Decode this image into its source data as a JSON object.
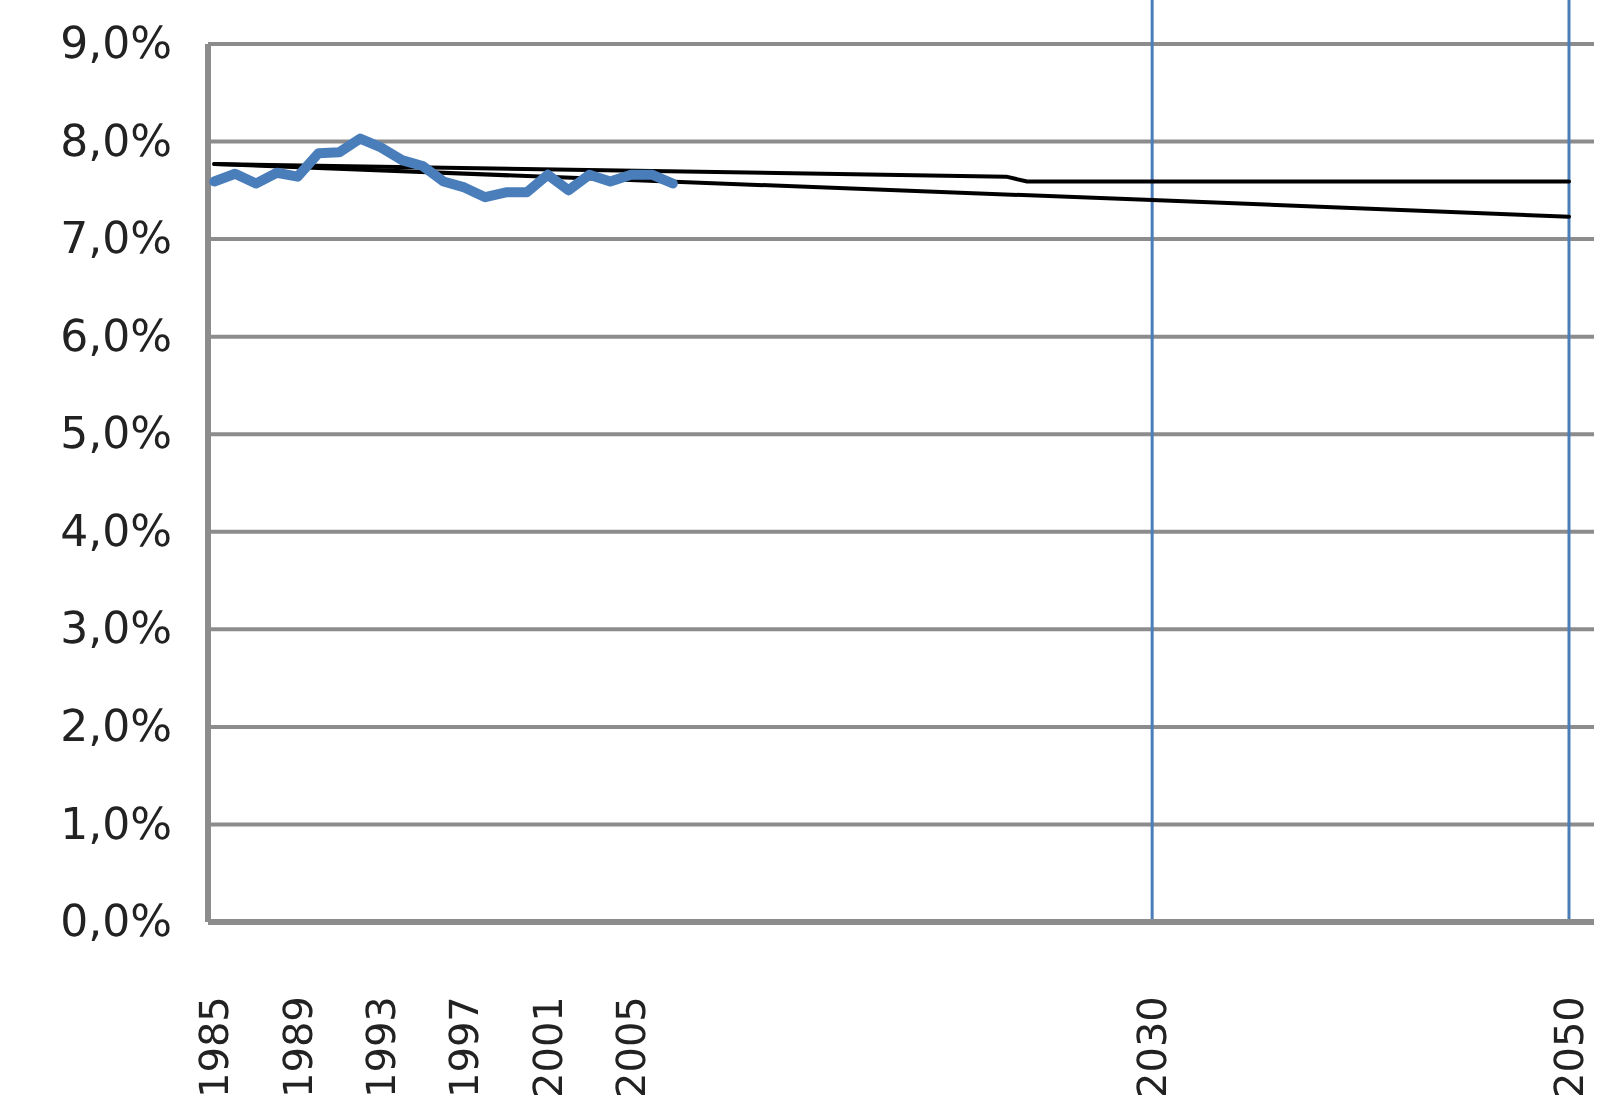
{
  "chart_data": {
    "type": "line",
    "xlim": [
      1984.7,
      2051.2
    ],
    "xticks": [
      1985,
      1989,
      1993,
      1997,
      2001,
      2005,
      2030,
      2050
    ],
    "ylim": [
      0,
      9
    ],
    "yticks": [
      {
        "value": 0,
        "label": "0,0%"
      },
      {
        "value": 1,
        "label": "1,0%"
      },
      {
        "value": 2,
        "label": "2,0%"
      },
      {
        "value": 3,
        "label": "3,0%"
      },
      {
        "value": 4,
        "label": "4,0%"
      },
      {
        "value": 5,
        "label": "5,0%"
      },
      {
        "value": 6,
        "label": "6,0%"
      },
      {
        "value": 7,
        "label": "7,0%"
      },
      {
        "value": 8,
        "label": "8,0%"
      },
      {
        "value": 9,
        "label": "9,0%"
      }
    ],
    "grid": "y",
    "marker": "none",
    "line_style": "solid",
    "series": [
      {
        "color": "#000000",
        "x": [
          1985,
          2023,
          2024,
          2050
        ],
        "values": [
          7.77,
          7.64,
          7.59,
          7.59
        ]
      },
      {
        "color": "#000000",
        "x": [
          1985,
          2030,
          2050
        ],
        "values": [
          7.77,
          7.4,
          7.23
        ]
      },
      {
        "color": "#4a7ebb",
        "x": [
          1985,
          1986,
          1987,
          1988,
          1989,
          1990,
          1991,
          1992,
          1993,
          1994,
          1995,
          1996,
          1997,
          1998,
          1999,
          2000,
          2001,
          2002,
          2003,
          2004,
          2005,
          2006,
          2007
        ],
        "values": [
          7.59,
          7.67,
          7.57,
          7.68,
          7.64,
          7.88,
          7.89,
          8.03,
          7.94,
          7.81,
          7.75,
          7.59,
          7.53,
          7.43,
          7.48,
          7.48,
          7.66,
          7.5,
          7.66,
          7.59,
          7.66,
          7.66,
          7.57
        ]
      }
    ],
    "ref_lines": [
      {
        "axis": "x",
        "value": 2030,
        "color": "#4a7ebb"
      },
      {
        "axis": "x",
        "value": 2050,
        "color": "#4a7ebb"
      }
    ]
  }
}
